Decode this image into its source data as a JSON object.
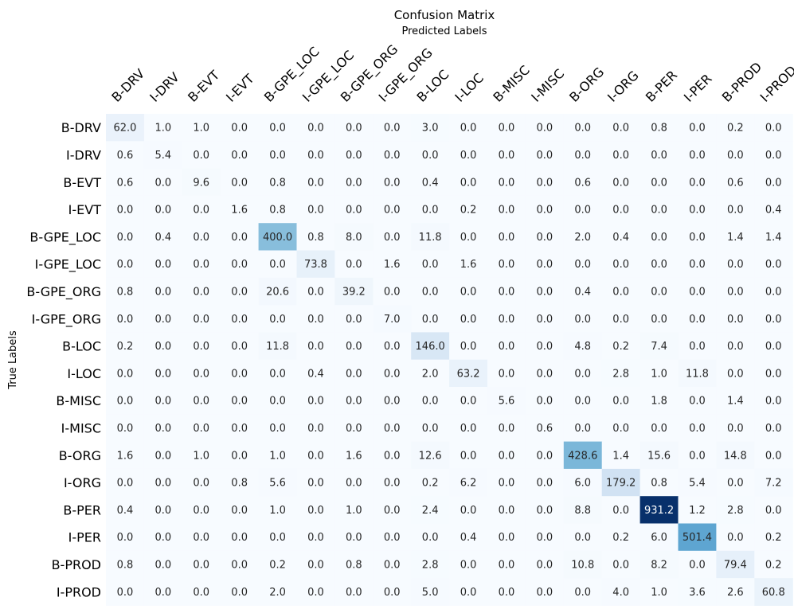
{
  "chart_data": {
    "type": "heatmap",
    "title": "Confusion Matrix",
    "subtitle": "Predicted Labels",
    "ylabel": "True Labels",
    "x_categories": [
      "B-DRV",
      "I-DRV",
      "B-EVT",
      "I-EVT",
      "B-GPE_LOC",
      "I-GPE_LOC",
      "B-GPE_ORG",
      "I-GPE_ORG",
      "B-LOC",
      "I-LOC",
      "B-MISC",
      "I-MISC",
      "B-ORG",
      "I-ORG",
      "B-PER",
      "I-PER",
      "B-PROD",
      "I-PROD"
    ],
    "y_categories": [
      "B-DRV",
      "I-DRV",
      "B-EVT",
      "I-EVT",
      "B-GPE_LOC",
      "I-GPE_LOC",
      "B-GPE_ORG",
      "I-GPE_ORG",
      "B-LOC",
      "I-LOC",
      "B-MISC",
      "I-MISC",
      "B-ORG",
      "I-ORG",
      "B-PER",
      "I-PER",
      "B-PROD",
      "I-PROD"
    ],
    "values": [
      [
        62.0,
        1.0,
        1.0,
        0.0,
        0.0,
        0.0,
        0.0,
        0.0,
        3.0,
        0.0,
        0.0,
        0.0,
        0.0,
        0.0,
        0.8,
        0.0,
        0.2,
        0.0
      ],
      [
        0.6,
        5.4,
        0.0,
        0.0,
        0.0,
        0.0,
        0.0,
        0.0,
        0.0,
        0.0,
        0.0,
        0.0,
        0.0,
        0.0,
        0.0,
        0.0,
        0.0,
        0.0
      ],
      [
        0.6,
        0.0,
        9.6,
        0.0,
        0.8,
        0.0,
        0.0,
        0.0,
        0.4,
        0.0,
        0.0,
        0.0,
        0.6,
        0.0,
        0.0,
        0.0,
        0.6,
        0.0
      ],
      [
        0.0,
        0.0,
        0.0,
        1.6,
        0.8,
        0.0,
        0.0,
        0.0,
        0.0,
        0.2,
        0.0,
        0.0,
        0.0,
        0.0,
        0.0,
        0.0,
        0.0,
        0.4
      ],
      [
        0.0,
        0.4,
        0.0,
        0.0,
        400.0,
        0.8,
        8.0,
        0.0,
        11.8,
        0.0,
        0.0,
        0.0,
        2.0,
        0.4,
        0.0,
        0.0,
        1.4,
        1.4
      ],
      [
        0.0,
        0.0,
        0.0,
        0.0,
        0.0,
        73.8,
        0.0,
        1.6,
        0.0,
        1.6,
        0.0,
        0.0,
        0.0,
        0.0,
        0.0,
        0.0,
        0.0,
        0.0
      ],
      [
        0.8,
        0.0,
        0.0,
        0.0,
        20.6,
        0.0,
        39.2,
        0.0,
        0.0,
        0.0,
        0.0,
        0.0,
        0.4,
        0.0,
        0.0,
        0.0,
        0.0,
        0.0
      ],
      [
        0.0,
        0.0,
        0.0,
        0.0,
        0.0,
        0.0,
        0.0,
        7.0,
        0.0,
        0.0,
        0.0,
        0.0,
        0.0,
        0.0,
        0.0,
        0.0,
        0.0,
        0.0
      ],
      [
        0.2,
        0.0,
        0.0,
        0.0,
        11.8,
        0.0,
        0.0,
        0.0,
        146.0,
        0.0,
        0.0,
        0.0,
        4.8,
        0.2,
        7.4,
        0.0,
        0.0,
        0.0
      ],
      [
        0.0,
        0.0,
        0.0,
        0.0,
        0.0,
        0.4,
        0.0,
        0.0,
        2.0,
        63.2,
        0.0,
        0.0,
        0.0,
        2.8,
        1.0,
        11.8,
        0.0,
        0.0
      ],
      [
        0.0,
        0.0,
        0.0,
        0.0,
        0.0,
        0.0,
        0.0,
        0.0,
        0.0,
        0.0,
        5.6,
        0.0,
        0.0,
        0.0,
        1.8,
        0.0,
        1.4,
        0.0
      ],
      [
        0.0,
        0.0,
        0.0,
        0.0,
        0.0,
        0.0,
        0.0,
        0.0,
        0.0,
        0.0,
        0.0,
        0.6,
        0.0,
        0.0,
        0.0,
        0.0,
        0.0,
        0.0
      ],
      [
        1.6,
        0.0,
        1.0,
        0.0,
        1.0,
        0.0,
        1.6,
        0.0,
        12.6,
        0.0,
        0.0,
        0.0,
        428.6,
        1.4,
        15.6,
        0.0,
        14.8,
        0.0
      ],
      [
        0.0,
        0.0,
        0.0,
        0.8,
        5.6,
        0.0,
        0.0,
        0.0,
        0.2,
        6.2,
        0.0,
        0.0,
        6.0,
        179.2,
        0.8,
        5.4,
        0.0,
        7.2
      ],
      [
        0.4,
        0.0,
        0.0,
        0.0,
        1.0,
        0.0,
        1.0,
        0.0,
        2.4,
        0.0,
        0.0,
        0.0,
        8.8,
        0.0,
        931.2,
        1.2,
        2.8,
        0.0
      ],
      [
        0.0,
        0.0,
        0.0,
        0.0,
        0.0,
        0.0,
        0.0,
        0.0,
        0.0,
        0.4,
        0.0,
        0.0,
        0.0,
        0.2,
        6.0,
        501.4,
        0.0,
        0.2
      ],
      [
        0.8,
        0.0,
        0.0,
        0.0,
        0.2,
        0.0,
        0.8,
        0.0,
        2.8,
        0.0,
        0.0,
        0.0,
        10.8,
        0.0,
        8.2,
        0.0,
        79.4,
        0.2
      ],
      [
        0.0,
        0.0,
        0.0,
        0.0,
        2.0,
        0.0,
        0.0,
        0.0,
        5.0,
        0.0,
        0.0,
        0.0,
        0.0,
        4.0,
        1.0,
        3.6,
        2.6,
        60.8
      ]
    ],
    "value_format": "one decimal",
    "colormap": "Blues",
    "color_low": "#f7fbff",
    "color_high": "#08306b",
    "x_axis_position": "top",
    "x_tick_rotation": "45 degrees",
    "colorbar": false,
    "grid": false
  }
}
